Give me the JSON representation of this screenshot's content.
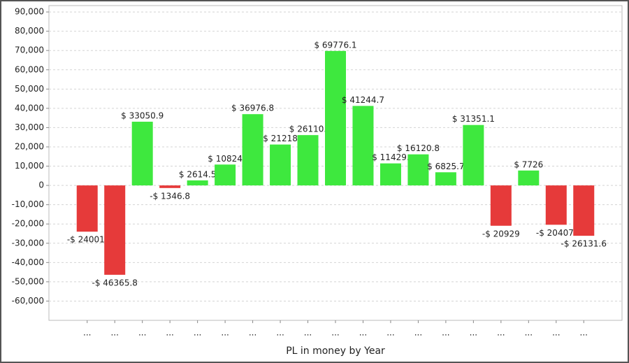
{
  "chart_data": {
    "type": "bar",
    "xlabel": "PL in money by Year",
    "categories": [
      "...",
      "...",
      "...",
      "...",
      "...",
      "...",
      "...",
      "...",
      "...",
      "...",
      "...",
      "...",
      "...",
      "...",
      "...",
      "...",
      "...",
      "...",
      "..."
    ],
    "values": [
      -24001,
      -46365.8,
      33050.9,
      -1346.8,
      2614.5,
      10824,
      36976.8,
      21218,
      26110,
      69776.1,
      41244.7,
      11429,
      16120.8,
      6825.7,
      31351.1,
      -20929,
      7726,
      -20407,
      -26131.6
    ],
    "value_labels": [
      "-$ 24001.",
      "-$ 46365.8",
      "$ 33050.9",
      "-$ 1346.8",
      "$ 2614.5",
      "$ 10824",
      "$ 36976.8",
      "$ 21218",
      "$ 26110.",
      "$ 69776.1",
      "$ 41244.7",
      "$ 11429.",
      "$ 16120.8",
      "$ 6825.7",
      "$ 31351.1",
      "-$ 20929",
      "$ 7726",
      "-$ 20407.",
      "-$ 26131.6"
    ],
    "positive_color": "#3ee83e",
    "negative_color": "#e63a3a",
    "ylim": [
      -70000,
      93300
    ],
    "yticks": [
      {
        "value": -60000,
        "label": "-60,000"
      },
      {
        "value": -50000,
        "label": "-50,000"
      },
      {
        "value": -40000,
        "label": "-40,000"
      },
      {
        "value": -30000,
        "label": "-30,000"
      },
      {
        "value": -20000,
        "label": "-20,000"
      },
      {
        "value": -10000,
        "label": "-10,000"
      },
      0,
      {
        "value": 10000,
        "label": "10,000"
      },
      {
        "value": 20000,
        "label": "20,000"
      },
      {
        "value": 30000,
        "label": "30,000"
      },
      {
        "value": 40000,
        "label": "40,000"
      },
      {
        "value": 50000,
        "label": "50,000"
      },
      {
        "value": 60000,
        "label": "60,000"
      },
      {
        "value": 70000,
        "label": "70,000"
      },
      {
        "value": 80000,
        "label": "80,000"
      },
      {
        "value": 90000,
        "label": "90,000"
      }
    ],
    "grid": true
  }
}
